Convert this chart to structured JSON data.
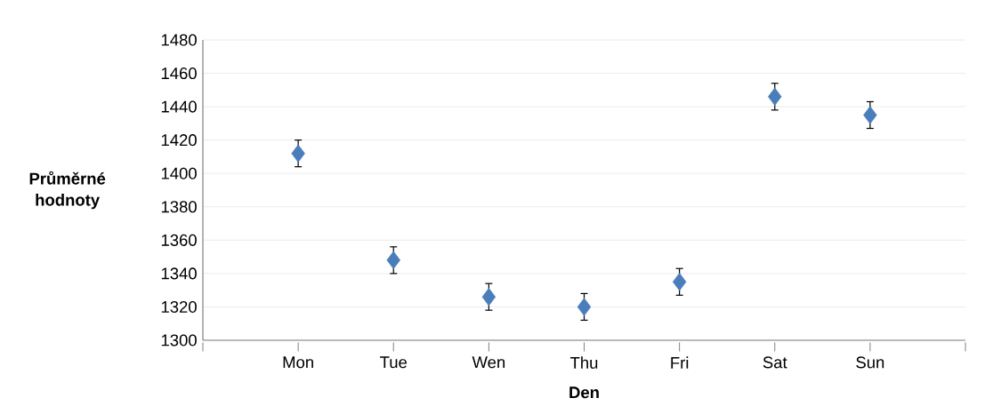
{
  "chart_data": {
    "type": "scatter",
    "xlabel": "Den",
    "ylabel": "Průměrné hodnoty",
    "categories": [
      "Mon",
      "Tue",
      "Wen",
      "Thu",
      "Fri",
      "Sat",
      "Sun"
    ],
    "values": [
      1412,
      1348,
      1326,
      1320,
      1335,
      1446,
      1435
    ],
    "errors": [
      8,
      8,
      8,
      8,
      8,
      8,
      8
    ],
    "color": "#4a7ebb",
    "marker": "diamond",
    "grid": "y",
    "ylim": [
      1300,
      1480
    ],
    "yticks": [
      1300,
      1320,
      1340,
      1360,
      1380,
      1400,
      1420,
      1440,
      1460,
      1480
    ]
  }
}
